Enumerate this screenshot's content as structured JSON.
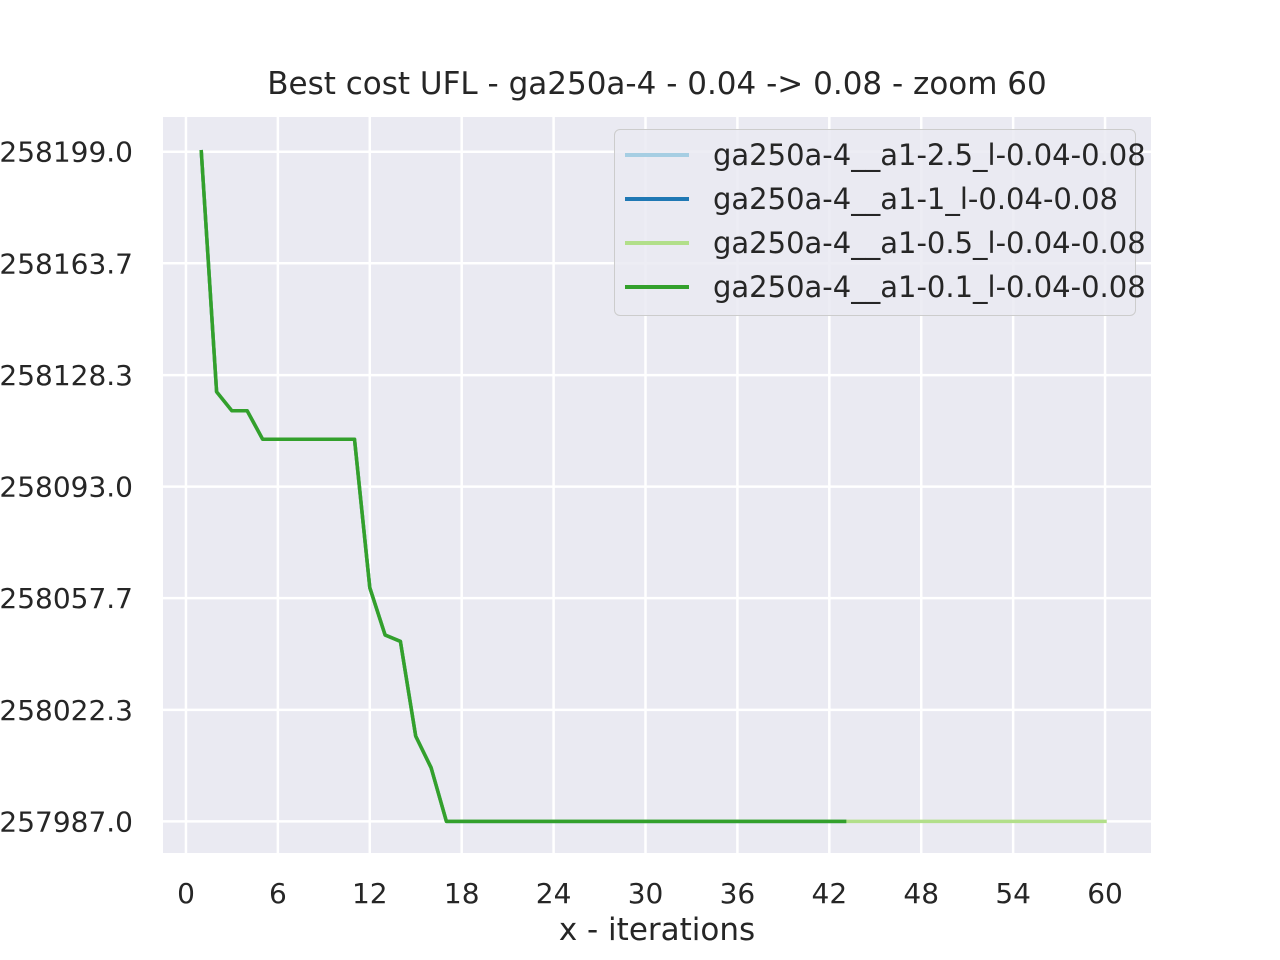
{
  "chart_data": {
    "type": "line",
    "title": "Best cost UFL - ga250a-4 - 0.04 -> 0.08 - zoom 60",
    "xlabel": "x - iterations",
    "ylabel": "",
    "xlim": [
      -1.5,
      63
    ],
    "ylim": [
      257977.0,
      258210.0
    ],
    "xticks": [
      0,
      6,
      12,
      18,
      24,
      30,
      36,
      42,
      48,
      54,
      60
    ],
    "yticks": [
      257987.0,
      258022.3,
      258057.7,
      258093.0,
      258128.3,
      258163.7,
      258199.0
    ],
    "ytick_labels": [
      "257987.0",
      "258022.3",
      "258057.7",
      "258093.0",
      "258128.3",
      "258163.7",
      "258199.0"
    ],
    "grid": true,
    "legend_position": "top-right",
    "series": [
      {
        "name": "ga250a-4__a1-2.5_l-0.04-0.08",
        "color": "#a6cee3",
        "x": [
          1,
          2,
          3,
          4,
          5,
          11,
          12,
          13,
          14,
          15,
          16,
          17,
          43
        ],
        "y": [
          258199.0,
          258123.0,
          258117.0,
          258117.0,
          258108.0,
          258108.0,
          258061.0,
          258046.0,
          258044.0,
          258014.0,
          258004.0,
          257987.0,
          257987.0
        ]
      },
      {
        "name": "ga250a-4__a1-1_l-0.04-0.08",
        "color": "#1f78b4",
        "x": [
          1,
          2,
          3,
          4,
          5,
          11,
          12,
          13,
          14,
          15,
          16,
          17,
          43
        ],
        "y": [
          258199.0,
          258123.0,
          258117.0,
          258117.0,
          258108.0,
          258108.0,
          258061.0,
          258046.0,
          258044.0,
          258014.0,
          258004.0,
          257987.0,
          257987.0
        ]
      },
      {
        "name": "ga250a-4__a1-0.5_l-0.04-0.08",
        "color": "#b2df8a",
        "x": [
          1,
          2,
          3,
          4,
          5,
          11,
          12,
          13,
          14,
          15,
          16,
          17,
          60
        ],
        "y": [
          258199.0,
          258123.0,
          258117.0,
          258117.0,
          258108.0,
          258108.0,
          258061.0,
          258046.0,
          258044.0,
          258014.0,
          258004.0,
          257987.0,
          257987.0
        ]
      },
      {
        "name": "ga250a-4__a1-0.1_l-0.04-0.08",
        "color": "#33a02c",
        "x": [
          1,
          2,
          3,
          4,
          5,
          11,
          12,
          13,
          14,
          15,
          16,
          17,
          43
        ],
        "y": [
          258199.0,
          258123.0,
          258117.0,
          258117.0,
          258108.0,
          258108.0,
          258061.0,
          258046.0,
          258044.0,
          258014.0,
          258004.0,
          257987.0,
          257987.0
        ]
      }
    ]
  }
}
